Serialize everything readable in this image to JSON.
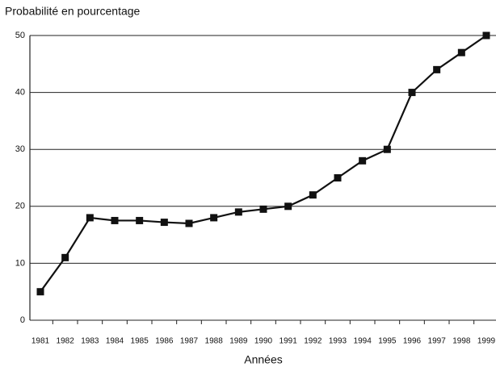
{
  "chart_data": {
    "type": "line",
    "y_axis_label": "Probabilité en pourcentage",
    "x_axis_label": "Années",
    "categories": [
      "1981",
      "1982",
      "1983",
      "1984",
      "1985",
      "1986",
      "1987",
      "1988",
      "1989",
      "1990",
      "1991",
      "1992",
      "1993",
      "1994",
      "1995",
      "1996",
      "1997",
      "1998",
      "1999"
    ],
    "values": [
      5,
      11,
      18,
      17.5,
      17.5,
      17.2,
      17,
      18,
      19,
      19.5,
      20,
      22,
      25,
      28,
      30,
      40,
      44,
      47,
      50
    ],
    "color": "#111111",
    "ylim": [
      0,
      50
    ],
    "yticks": [
      0,
      10,
      20,
      30,
      40,
      50
    ],
    "grid": true
  }
}
